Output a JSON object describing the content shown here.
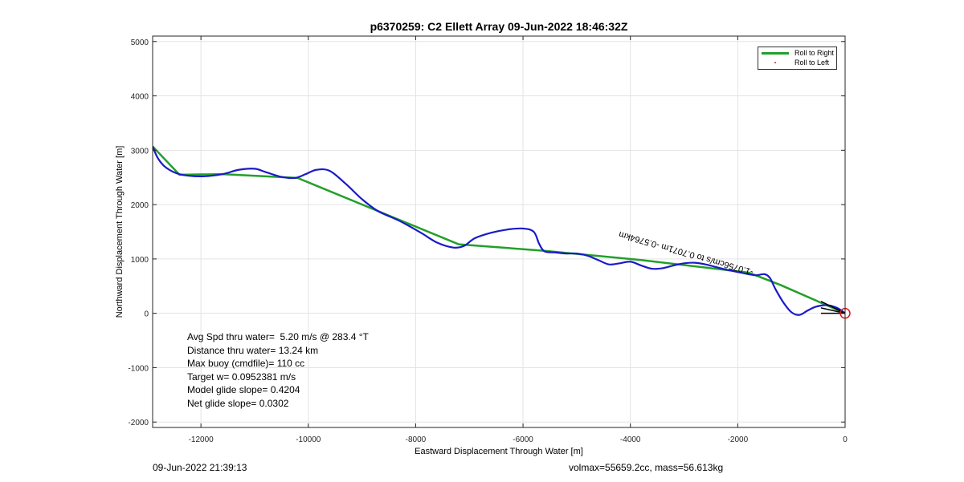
{
  "chart_data": {
    "type": "line",
    "title": "p6370259: C2 Ellett Array 09-Jun-2022 18:46:32Z",
    "xlabel": "Eastward Displacement Through Water [m]",
    "ylabel": "Northward Displacement Through Water [m]",
    "xlim": [
      -12900,
      0
    ],
    "ylim": [
      -2100,
      5100
    ],
    "xticks": [
      -12000,
      -10000,
      -8000,
      -6000,
      -4000,
      -2000,
      0
    ],
    "yticks": [
      -2000,
      -1000,
      0,
      1000,
      2000,
      3000,
      4000,
      5000
    ],
    "grid": true,
    "legend_position": "top-right",
    "series": [
      {
        "name": "Roll to Right",
        "color": "#22a02a",
        "x": [
          -12900,
          -12400,
          -11600,
          -10200,
          -7200,
          -5600,
          -3800,
          -1800,
          -1200,
          0
        ],
        "y": [
          3070,
          2550,
          2560,
          2490,
          1270,
          1150,
          980,
          750,
          520,
          0
        ]
      },
      {
        "name": "Roll to Left",
        "color": "#d62020",
        "x": [],
        "y": []
      },
      {
        "color": "#1a1ac8",
        "x": [
          -12900,
          -12800,
          -12650,
          -12400,
          -12000,
          -11600,
          -11300,
          -11000,
          -10800,
          -10500,
          -10250,
          -10050,
          -9850,
          -9600,
          -9300,
          -9000,
          -8700,
          -8300,
          -7900,
          -7600,
          -7300,
          -7100,
          -6900,
          -6600,
          -6300,
          -6000,
          -5800,
          -5700,
          -5600,
          -5400,
          -5200,
          -5000,
          -4800,
          -4600,
          -4400,
          -4200,
          -4000,
          -3800,
          -3600,
          -3400,
          -3200,
          -3000,
          -2800,
          -2600,
          -2400,
          -2200,
          -2000,
          -1800,
          -1650,
          -1500,
          -1400,
          -1300,
          -1150,
          -1000,
          -850,
          -700,
          -550,
          -350,
          -150,
          0
        ],
        "y": [
          3070,
          2850,
          2680,
          2560,
          2520,
          2560,
          2640,
          2660,
          2600,
          2510,
          2490,
          2560,
          2640,
          2620,
          2380,
          2100,
          1880,
          1700,
          1480,
          1300,
          1210,
          1240,
          1380,
          1480,
          1540,
          1560,
          1500,
          1280,
          1140,
          1120,
          1100,
          1100,
          1060,
          980,
          900,
          920,
          950,
          880,
          820,
          830,
          880,
          920,
          930,
          900,
          850,
          800,
          760,
          720,
          700,
          720,
          650,
          450,
          200,
          20,
          -30,
          50,
          120,
          150,
          100,
          0
        ]
      }
    ],
    "start_point": {
      "x": 0,
      "y": 0,
      "color": "#d62020"
    },
    "arrows": [
      {
        "x1": -450,
        "y1": 220,
        "x2": 0,
        "y2": 0
      },
      {
        "x1": -450,
        "y1": 100,
        "x2": 0,
        "y2": 0
      },
      {
        "x1": -450,
        "y1": 0,
        "x2": 0,
        "y2": 0
      }
    ],
    "rotated_annotation": {
      "text": "-1.0756cm/s to 0.7071m -0.5764km",
      "x": -1700,
      "y": 800
    }
  },
  "stats": {
    "avg_speed": "Avg Spd thru water=  5.20 m/s @ 283.4 °T",
    "distance": "Distance thru water= 13.24 km",
    "max_buoy": "Max buoy (cmdfile)= 110 cc",
    "target_w": "Target w= 0.0952381 m/s",
    "model_glide": "Model glide slope= 0.4204",
    "net_glide": "Net glide slope= 0.0302"
  },
  "footer": {
    "timestamp": "09-Jun-2022 21:39:13",
    "vol_mass": "volmax=55659.2cc, mass=56.613kg"
  }
}
